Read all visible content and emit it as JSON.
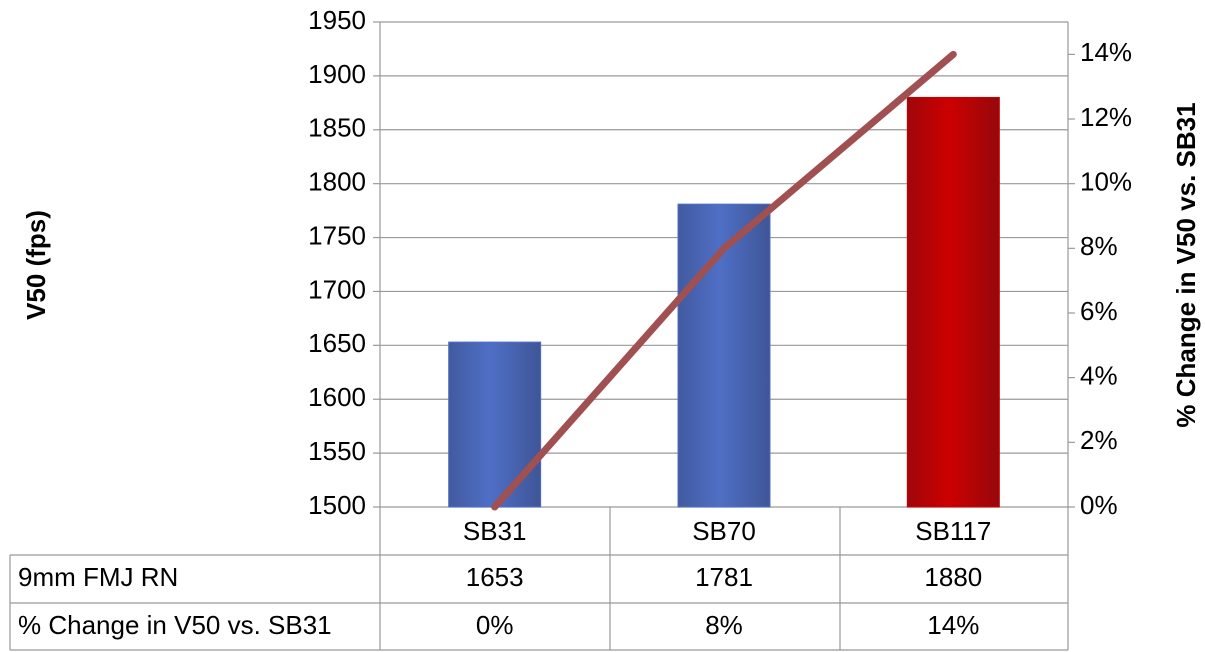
{
  "chart_data": {
    "type": "bar",
    "categories": [
      "SB31",
      "SB70",
      "SB117"
    ],
    "series": [
      {
        "name": "9mm FMJ RN",
        "type": "bar",
        "colors": [
          "#4f6fc6",
          "#4f6fc6",
          "#cc0000"
        ],
        "values": [
          1653,
          1781,
          1880
        ]
      },
      {
        "name": "% Change in V50 vs. SB31",
        "type": "line",
        "axis": "y2",
        "color": "#a05050",
        "values": [
          0,
          8,
          14
        ],
        "value_labels": [
          "0%",
          "8%",
          "14%"
        ]
      }
    ],
    "y_label": "V50 (fps)",
    "y2_label": "% Change in V50 vs. SB31",
    "ylim": [
      1500,
      1950
    ],
    "yticks": [
      1500,
      1550,
      1600,
      1650,
      1700,
      1750,
      1800,
      1850,
      1900,
      1950
    ],
    "y2lim": [
      0,
      15
    ],
    "y2ticks": [
      {
        "value": 0,
        "label": "0%"
      },
      {
        "value": 2,
        "label": "2%"
      },
      {
        "value": 4,
        "label": "4%"
      },
      {
        "value": 6,
        "label": "6%"
      },
      {
        "value": 8,
        "label": "8%"
      },
      {
        "value": 10,
        "label": "10%"
      },
      {
        "value": 12,
        "label": "12%"
      },
      {
        "value": 14,
        "label": "14%"
      }
    ],
    "grid": true,
    "data_table": true
  }
}
